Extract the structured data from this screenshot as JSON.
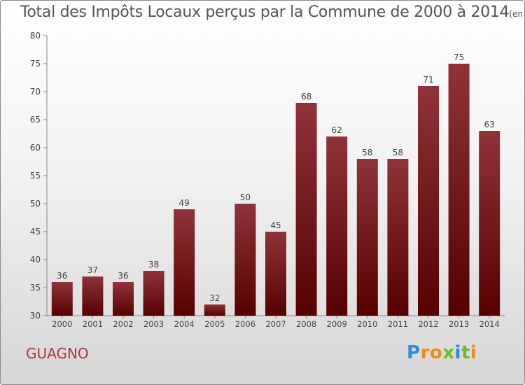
{
  "title": "Total des Impôts Locaux perçus par la Commune de 2000 à 2014",
  "title_unit": "(en milliers d'€)",
  "commune": "GUAGNO",
  "logo": {
    "text": "Proxiti",
    "letters": [
      "P",
      "r",
      "o",
      "x",
      "i",
      "t",
      "i"
    ],
    "colors": [
      "#2a8fd6",
      "#f08a1c",
      "#f08a1c",
      "#6cbe2f",
      "#2a8fd6",
      "#6cbe2f",
      "#f08a1c"
    ]
  },
  "colors": {
    "bar_top": "#8f3338",
    "bar_bottom": "#560000",
    "axis": "#888888",
    "label": "#444444"
  },
  "chart_data": {
    "type": "bar",
    "title": "Total des Impôts Locaux perçus par la Commune de 2000 à 2014",
    "xlabel": "",
    "ylabel": "en milliers d'€",
    "categories": [
      "2000",
      "2001",
      "2002",
      "2003",
      "2004",
      "2005",
      "2006",
      "2007",
      "2008",
      "2009",
      "2010",
      "2011",
      "2012",
      "2013",
      "2014"
    ],
    "values": [
      36,
      37,
      36,
      38,
      49,
      32,
      50,
      45,
      68,
      62,
      58,
      58,
      71,
      75,
      63
    ],
    "ylim": [
      30,
      80
    ],
    "yticks": [
      30,
      35,
      40,
      45,
      50,
      55,
      60,
      65,
      70,
      75,
      80
    ],
    "grid": false
  }
}
